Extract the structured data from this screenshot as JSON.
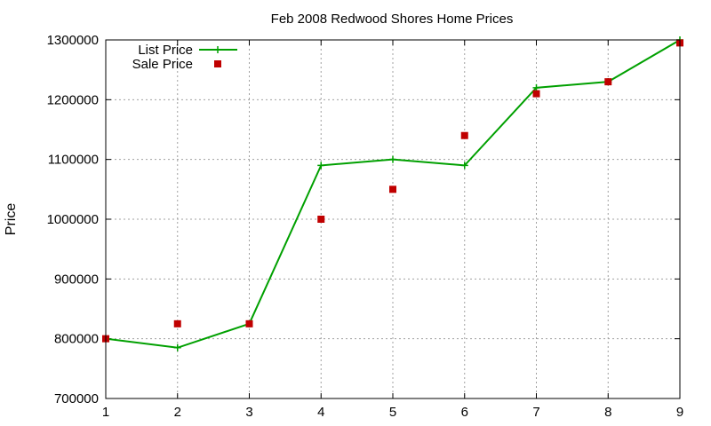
{
  "chart_data": {
    "type": "line",
    "title": "Feb 2008 Redwood Shores Home Prices",
    "xlabel": "",
    "ylabel": "Price",
    "x": [
      1,
      2,
      3,
      4,
      5,
      6,
      7,
      8,
      9
    ],
    "xlim": [
      1,
      9
    ],
    "ylim": [
      700000,
      1300000
    ],
    "xticks": [
      "1",
      "2",
      "3",
      "4",
      "5",
      "6",
      "7",
      "8",
      "9"
    ],
    "yticks": [
      "700000",
      "800000",
      "900000",
      "1000000",
      "1100000",
      "1200000",
      "1300000"
    ],
    "grid": true,
    "legend_position": "top-left",
    "series": [
      {
        "name": "List Price",
        "style": "line-with-plus-markers",
        "color": "#00a000",
        "values": [
          800000,
          785000,
          825000,
          1090000,
          1100000,
          1090000,
          1220000,
          1230000,
          1300000
        ]
      },
      {
        "name": "Sale Price",
        "style": "square-points",
        "color": "#c00000",
        "values": [
          800000,
          825000,
          825000,
          1000000,
          1050000,
          1140000,
          1210000,
          1230000,
          1295000
        ]
      }
    ]
  }
}
